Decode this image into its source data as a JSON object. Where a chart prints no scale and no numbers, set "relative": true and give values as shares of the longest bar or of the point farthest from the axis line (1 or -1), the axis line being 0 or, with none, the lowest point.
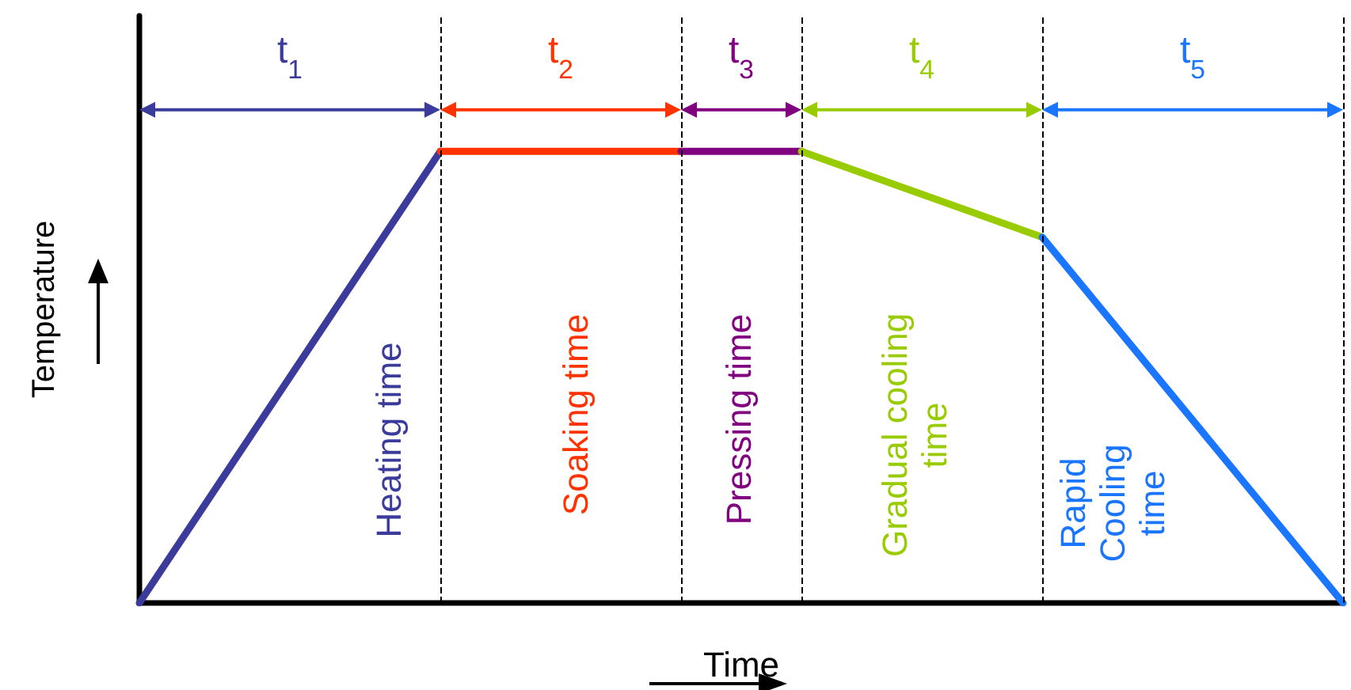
{
  "chart_data": {
    "type": "line",
    "relative": true,
    "xlabel": "Time",
    "ylabel": "Temperature",
    "grid": "x",
    "marker": "none",
    "line_style": "solid",
    "categories": [
      null,
      null,
      null,
      null,
      null,
      null,
      null,
      null,
      null,
      null,
      null,
      null,
      null,
      null,
      null,
      null,
      null,
      null,
      null,
      null,
      null
    ],
    "series": [
      {
        "color": "#3b3b9b",
        "values": [
          0,
          null,
          null,
          null,
          null,
          1,
          null,
          null,
          null,
          null,
          null,
          null,
          null,
          null,
          null,
          null,
          null,
          null,
          null,
          null,
          null
        ]
      },
      {
        "color": "#ff3300",
        "values": [
          null,
          null,
          null,
          null,
          null,
          1,
          null,
          null,
          null,
          1,
          null,
          null,
          null,
          null,
          null,
          null,
          null,
          null,
          null,
          null,
          null
        ]
      },
      {
        "color": "#800080",
        "values": [
          null,
          null,
          null,
          null,
          null,
          null,
          null,
          null,
          null,
          1,
          null,
          1,
          null,
          null,
          null,
          null,
          null,
          null,
          null,
          null,
          null
        ]
      },
      {
        "color": "#99cc00",
        "values": [
          null,
          null,
          null,
          null,
          null,
          null,
          null,
          null,
          null,
          null,
          null,
          1,
          null,
          null,
          null,
          0.81,
          null,
          null,
          null,
          null,
          null
        ]
      },
      {
        "color": "#1a75ff",
        "values": [
          null,
          null,
          null,
          null,
          null,
          null,
          null,
          null,
          null,
          null,
          null,
          null,
          null,
          null,
          null,
          0.81,
          null,
          null,
          null,
          null,
          0
        ]
      }
    ],
    "annotations": [
      "t$_{1}$",
      "t$_{2}$",
      "t$_{3}$",
      "t$_{4}$",
      "t$_{5}$",
      "Heating time",
      "Soaking time",
      "Pressing time",
      "Gradual cooling\ntime",
      "Rapid\nCooling\ntime"
    ]
  }
}
